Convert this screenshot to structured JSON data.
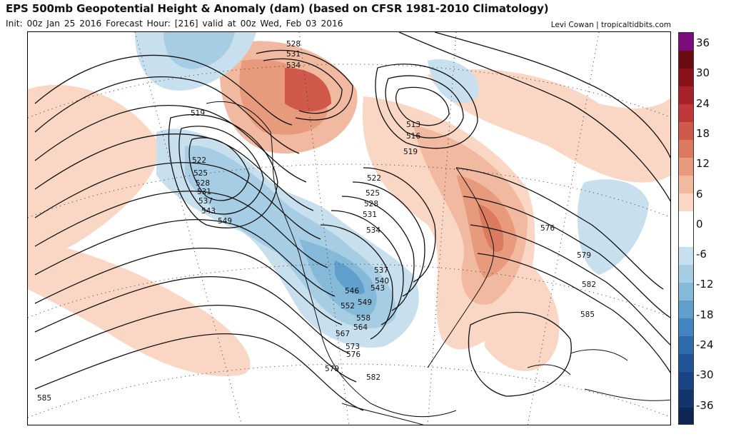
{
  "header": {
    "title": "EPS 500mb Geopotential Height & Anomaly (dam) (based on CFSR 1981-2010 Climatology)",
    "subtitle": "Init: 00z Jan 25 2016   Forecast Hour: [216]   valid at 00z Wed, Feb 03 2016",
    "credit": "Levi Cowan | tropicaltidbits.com"
  },
  "colorbar": {
    "ticks": [
      "36",
      "30",
      "24",
      "18",
      "12",
      "6",
      "0",
      "-6",
      "-12",
      "-18",
      "-24",
      "-30",
      "-36"
    ],
    "colors": [
      "#7d0b7b",
      "#6b0b12",
      "#8a1219",
      "#a6212a",
      "#c0383b",
      "#cf5a4b",
      "#dc7a5f",
      "#e79a7c",
      "#f1b9a0",
      "#fad6c4",
      "#ffffff",
      "#ffffff",
      "#c8e0ee",
      "#a6cde3",
      "#85b9d8",
      "#5f9fcb",
      "#4385be",
      "#2f6cab",
      "#225597",
      "#1a4582",
      "#14356b",
      "#0e2654"
    ]
  },
  "contour_labels": [
    "528",
    "531",
    "534",
    "519",
    "513",
    "516",
    "519",
    "522",
    "525",
    "528",
    "531",
    "537",
    "543",
    "549",
    "522",
    "525",
    "528",
    "531",
    "534",
    "537",
    "540",
    "543",
    "546",
    "549",
    "552",
    "558",
    "564",
    "567",
    "573",
    "576",
    "579",
    "582",
    "576",
    "579",
    "582",
    "585",
    "585"
  ]
}
